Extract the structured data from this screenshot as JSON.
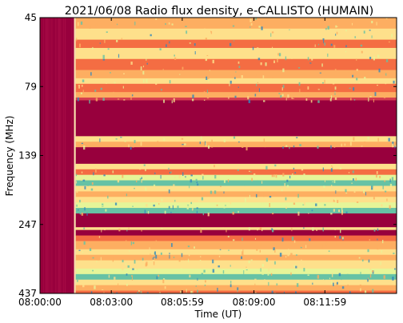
{
  "chart_data": {
    "type": "heatmap",
    "title": "2021/06/08  Radio flux density, e-CALLISTO (HUMAIN)",
    "xlabel": "Time (UT)",
    "ylabel": "Frequency (MHz)",
    "x_ticks": [
      "08:00:00",
      "08:03:00",
      "08:05:59",
      "08:09:00",
      "08:11:59"
    ],
    "x_tick_seconds": [
      0,
      180,
      359,
      540,
      719
    ],
    "x_range_seconds": [
      0,
      900
    ],
    "y_ticks": [
      "45",
      "79",
      "139",
      "247",
      "437"
    ],
    "y_range_mhz": [
      45,
      437
    ],
    "y_inverted": true,
    "instrument_gap_end_seconds": 90,
    "colormap": "Spectral_r",
    "colors": {
      "background_band": "#98003d",
      "low": "#d53e4f",
      "mid_low": "#f46d43",
      "mid": "#fdae61",
      "mid_high": "#fee08b",
      "high": "#e6f598",
      "very_high": "#66c2a5",
      "peak": "#3288bd"
    },
    "bands": [
      {
        "from": 0.0,
        "to": 0.04,
        "level": "mid"
      },
      {
        "from": 0.04,
        "to": 0.08,
        "level": "mid_high"
      },
      {
        "from": 0.08,
        "to": 0.11,
        "level": "mid_low"
      },
      {
        "from": 0.11,
        "to": 0.15,
        "level": "mid_high"
      },
      {
        "from": 0.15,
        "to": 0.19,
        "level": "mid_low"
      },
      {
        "from": 0.19,
        "to": 0.22,
        "level": "mid"
      },
      {
        "from": 0.22,
        "to": 0.24,
        "level": "mid_high"
      },
      {
        "from": 0.24,
        "to": 0.27,
        "level": "mid_low"
      },
      {
        "from": 0.27,
        "to": 0.29,
        "level": "mid"
      },
      {
        "from": 0.29,
        "to": 0.3,
        "level": "low"
      },
      {
        "from": 0.3,
        "to": 0.43,
        "level": "background_band"
      },
      {
        "from": 0.43,
        "to": 0.45,
        "level": "mid_high"
      },
      {
        "from": 0.45,
        "to": 0.47,
        "level": "mid"
      },
      {
        "from": 0.47,
        "to": 0.53,
        "level": "background_band"
      },
      {
        "from": 0.53,
        "to": 0.55,
        "level": "mid_high"
      },
      {
        "from": 0.55,
        "to": 0.57,
        "level": "mid_low"
      },
      {
        "from": 0.57,
        "to": 0.59,
        "level": "high"
      },
      {
        "from": 0.59,
        "to": 0.61,
        "level": "very_high"
      },
      {
        "from": 0.61,
        "to": 0.63,
        "level": "mid_high"
      },
      {
        "from": 0.63,
        "to": 0.65,
        "level": "mid"
      },
      {
        "from": 0.65,
        "to": 0.67,
        "level": "mid_high"
      },
      {
        "from": 0.67,
        "to": 0.69,
        "level": "high"
      },
      {
        "from": 0.69,
        "to": 0.71,
        "level": "very_high"
      },
      {
        "from": 0.71,
        "to": 0.73,
        "level": "background_band"
      },
      {
        "from": 0.73,
        "to": 0.76,
        "level": "background_band"
      },
      {
        "from": 0.76,
        "to": 0.77,
        "level": "mid_high"
      },
      {
        "from": 0.77,
        "to": 0.79,
        "level": "background_band"
      },
      {
        "from": 0.79,
        "to": 0.81,
        "level": "mid_low"
      },
      {
        "from": 0.81,
        "to": 0.84,
        "level": "mid"
      },
      {
        "from": 0.84,
        "to": 0.86,
        "level": "mid_high"
      },
      {
        "from": 0.86,
        "to": 0.88,
        "level": "mid"
      },
      {
        "from": 0.88,
        "to": 0.91,
        "level": "mid_high"
      },
      {
        "from": 0.91,
        "to": 0.93,
        "level": "high"
      },
      {
        "from": 0.93,
        "to": 0.95,
        "level": "very_high"
      },
      {
        "from": 0.95,
        "to": 0.97,
        "level": "mid_high"
      },
      {
        "from": 0.97,
        "to": 0.99,
        "level": "mid"
      },
      {
        "from": 0.99,
        "to": 1.0,
        "level": "mid_low"
      }
    ]
  }
}
